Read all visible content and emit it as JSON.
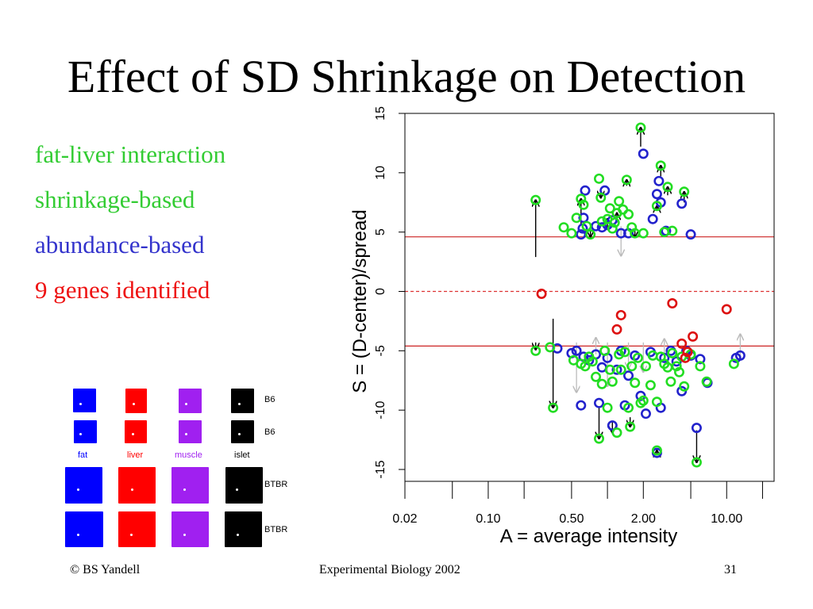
{
  "slide": {
    "title": "Effect of SD Shrinkage on Detection",
    "bullets": [
      {
        "text": "fat-liver interaction",
        "color": "#33cc33"
      },
      {
        "text": "shrinkage-based",
        "color": "#33cc33"
      },
      {
        "text": "abundance-based",
        "color": "#3333cc"
      },
      {
        "text": "9 genes identified",
        "color": "#ee1111"
      }
    ],
    "footer": {
      "left": "© BS Yandell",
      "center": "Experimental Biology 2002",
      "right": "31"
    }
  },
  "legend_grid": {
    "columns": [
      {
        "label": "fat",
        "color": "#0000ff"
      },
      {
        "label": "liver",
        "color": "#ff0000"
      },
      {
        "label": "muscle",
        "color": "#a020f0"
      },
      {
        "label": "islet",
        "color": "#000000"
      }
    ],
    "rows": [
      "B6",
      "B6",
      "BTBR",
      "BTBR"
    ]
  },
  "chart_data": {
    "type": "scatter",
    "xlabel": "A = average intensity",
    "ylabel": "S = (D-center)/spread",
    "x_scale": "log",
    "xlim": [
      0.02,
      25
    ],
    "ylim": [
      -16,
      15
    ],
    "x_ticks": [
      0.02,
      0.1,
      0.5,
      2.0,
      10.0
    ],
    "x_tick_labels": [
      "0.02",
      "0.10",
      "0.50",
      "2.00",
      "10.00"
    ],
    "x_minor_ticks": [
      0.05,
      0.2,
      1.0,
      5.0,
      20.0
    ],
    "y_ticks": [
      -15,
      -10,
      -5,
      0,
      5,
      10,
      15
    ],
    "y_tick_labels": [
      "-15",
      "-10",
      "-5",
      "0",
      "5",
      "10",
      "15"
    ],
    "thresholds": {
      "upper": 4.6,
      "lower": -4.6,
      "center": 0,
      "threshold_color": "#cc2222",
      "center_color": "#dd3333"
    },
    "colors": {
      "abundance": "#2222cc",
      "shrinkage": "#22dd22",
      "identified": "#dd1111",
      "arrow": "#000000",
      "arrow_faint": "#bbbbbb"
    },
    "series": [
      {
        "name": "abundance-based",
        "points": [
          [
            0.6,
            4.8
          ],
          [
            0.62,
            5.3
          ],
          [
            0.63,
            6.2
          ],
          [
            0.65,
            8.5
          ],
          [
            0.8,
            5.5
          ],
          [
            0.9,
            5.4
          ],
          [
            0.95,
            8.5
          ],
          [
            1.0,
            5.6
          ],
          [
            1.1,
            6.0
          ],
          [
            1.3,
            4.9
          ],
          [
            1.5,
            4.9
          ],
          [
            2.0,
            11.6
          ],
          [
            2.4,
            6.1
          ],
          [
            2.6,
            8.2
          ],
          [
            2.7,
            9.3
          ],
          [
            2.8,
            7.5
          ],
          [
            3.1,
            5.1
          ],
          [
            4.2,
            7.4
          ],
          [
            5.0,
            4.8
          ],
          [
            0.38,
            -4.8
          ],
          [
            0.5,
            -5.2
          ],
          [
            0.55,
            -5.0
          ],
          [
            0.6,
            -9.6
          ],
          [
            0.63,
            -5.5
          ],
          [
            0.7,
            -5.8
          ],
          [
            0.8,
            -5.3
          ],
          [
            0.85,
            -9.4
          ],
          [
            0.9,
            -6.4
          ],
          [
            1.0,
            -5.6
          ],
          [
            1.1,
            -11.3
          ],
          [
            1.2,
            -6.6
          ],
          [
            1.3,
            -5.0
          ],
          [
            1.4,
            -9.6
          ],
          [
            1.5,
            -7.1
          ],
          [
            1.7,
            -5.4
          ],
          [
            1.9,
            -8.8
          ],
          [
            2.1,
            -10.3
          ],
          [
            2.3,
            -5.1
          ],
          [
            2.6,
            -13.6
          ],
          [
            2.8,
            -9.8
          ],
          [
            3.0,
            -5.6
          ],
          [
            3.4,
            -5.0
          ],
          [
            3.8,
            -5.9
          ],
          [
            4.2,
            -8.4
          ],
          [
            4.6,
            -5.0
          ],
          [
            5.0,
            -5.4
          ],
          [
            5.6,
            -11.5
          ],
          [
            6.0,
            -5.7
          ],
          [
            6.9,
            -7.7
          ],
          [
            12.0,
            -5.6
          ],
          [
            13.0,
            -5.4
          ]
        ]
      },
      {
        "name": "shrinkage-based",
        "points": [
          [
            0.25,
            7.7
          ],
          [
            0.43,
            5.4
          ],
          [
            0.5,
            4.9
          ],
          [
            0.55,
            6.2
          ],
          [
            0.6,
            7.8
          ],
          [
            0.63,
            7.3
          ],
          [
            0.67,
            5.5
          ],
          [
            0.72,
            4.8
          ],
          [
            0.85,
            9.5
          ],
          [
            0.88,
            7.9
          ],
          [
            0.9,
            5.9
          ],
          [
            1.0,
            6.1
          ],
          [
            1.05,
            7.0
          ],
          [
            1.1,
            5.3
          ],
          [
            1.15,
            5.8
          ],
          [
            1.2,
            6.6
          ],
          [
            1.25,
            7.6
          ],
          [
            1.35,
            6.9
          ],
          [
            1.45,
            9.4
          ],
          [
            1.5,
            6.5
          ],
          [
            1.6,
            5.4
          ],
          [
            1.7,
            4.9
          ],
          [
            1.9,
            13.8
          ],
          [
            2.0,
            4.9
          ],
          [
            2.6,
            7.2
          ],
          [
            2.8,
            10.6
          ],
          [
            3.0,
            5.0
          ],
          [
            3.2,
            8.8
          ],
          [
            3.5,
            5.1
          ],
          [
            4.4,
            8.4
          ],
          [
            0.25,
            -5.0
          ],
          [
            0.33,
            -4.7
          ],
          [
            0.35,
            -9.8
          ],
          [
            0.52,
            -5.8
          ],
          [
            0.6,
            -6.1
          ],
          [
            0.65,
            -6.3
          ],
          [
            0.7,
            -5.5
          ],
          [
            0.75,
            -5.9
          ],
          [
            0.8,
            -7.2
          ],
          [
            0.85,
            -12.4
          ],
          [
            0.9,
            -7.8
          ],
          [
            0.95,
            -5.0
          ],
          [
            1.0,
            -9.8
          ],
          [
            1.05,
            -6.6
          ],
          [
            1.1,
            -7.6
          ],
          [
            1.2,
            -11.9
          ],
          [
            1.25,
            -5.3
          ],
          [
            1.3,
            -6.6
          ],
          [
            1.4,
            -5.1
          ],
          [
            1.5,
            -9.8
          ],
          [
            1.55,
            -11.4
          ],
          [
            1.6,
            -6.3
          ],
          [
            1.7,
            -7.7
          ],
          [
            1.8,
            -5.6
          ],
          [
            1.9,
            -9.4
          ],
          [
            2.0,
            -9.2
          ],
          [
            2.1,
            -6.3
          ],
          [
            2.3,
            -7.9
          ],
          [
            2.4,
            -5.4
          ],
          [
            2.6,
            -9.3
          ],
          [
            2.6,
            -13.4
          ],
          [
            2.8,
            -5.5
          ],
          [
            3.0,
            -6.1
          ],
          [
            3.2,
            -6.4
          ],
          [
            3.4,
            -7.6
          ],
          [
            3.5,
            -5.2
          ],
          [
            3.8,
            -6.3
          ],
          [
            4.0,
            -6.8
          ],
          [
            4.2,
            -5.5
          ],
          [
            4.4,
            -8.0
          ],
          [
            5.0,
            -5.3
          ],
          [
            5.6,
            -14.4
          ],
          [
            6.0,
            -6.3
          ],
          [
            6.8,
            -7.6
          ],
          [
            11.5,
            -6.1
          ]
        ]
      },
      {
        "name": "identified",
        "points": [
          [
            0.28,
            -0.2
          ],
          [
            1.2,
            -3.2
          ],
          [
            1.3,
            -2.0
          ],
          [
            3.5,
            -1.0
          ],
          [
            4.2,
            -4.4
          ],
          [
            4.5,
            -5.6
          ],
          [
            4.7,
            -5.1
          ],
          [
            5.2,
            -3.8
          ],
          [
            10.0,
            -1.5
          ]
        ]
      }
    ],
    "arrows": [
      {
        "x": 0.25,
        "from": 2.9,
        "to": 7.7
      },
      {
        "x": 1.9,
        "from": 12.2,
        "to": 13.8
      },
      {
        "x": 2.8,
        "from": 9.7,
        "to": 10.6
      },
      {
        "x": 0.35,
        "from": -2.3,
        "to": -9.8
      },
      {
        "x": 0.85,
        "from": -9.8,
        "to": -12.4
      },
      {
        "x": 5.6,
        "from": -11.7,
        "to": -14.4
      },
      {
        "x": 2.6,
        "from": -13.8,
        "to": -13.4
      },
      {
        "x": 0.25,
        "from": -4.3,
        "to": -4.9
      },
      {
        "x": 0.6,
        "from": 5.6,
        "to": 7.8
      },
      {
        "x": 1.0,
        "from": 5.2,
        "to": 6.1
      },
      {
        "x": 1.2,
        "from": 5.8,
        "to": 6.6
      },
      {
        "x": 4.4,
        "from": 7.5,
        "to": 8.4
      },
      {
        "x": 3.2,
        "from": 8.1,
        "to": 8.8
      },
      {
        "x": 1.1,
        "from": -10.9,
        "to": -11.9
      },
      {
        "x": 1.55,
        "from": -10.6,
        "to": -11.4
      },
      {
        "x": 0.72,
        "from": 5.1,
        "to": 4.6
      },
      {
        "x": 1.7,
        "from": 5.2,
        "to": 4.6
      },
      {
        "x": 1.45,
        "from": 8.9,
        "to": 9.4
      },
      {
        "x": 0.88,
        "from": 8.7,
        "to": 7.9
      },
      {
        "x": 2.6,
        "from": 6.8,
        "to": 7.2
      }
    ],
    "faint_arrows": [
      {
        "x": 1.3,
        "from": 5.5,
        "to": 3.0
      },
      {
        "x": 0.55,
        "from": -4.3,
        "to": -8.5
      },
      {
        "x": 1.0,
        "from": -4.3,
        "to": -8.0
      },
      {
        "x": 1.5,
        "from": -4.3,
        "to": -6.5
      },
      {
        "x": 2.0,
        "from": -4.3,
        "to": -6.8
      },
      {
        "x": 13.0,
        "from": -5.4,
        "to": -3.6
      },
      {
        "x": 0.8,
        "from": -5.3,
        "to": -3.9
      },
      {
        "x": 3.0,
        "from": -5.6,
        "to": -4.0
      }
    ]
  }
}
